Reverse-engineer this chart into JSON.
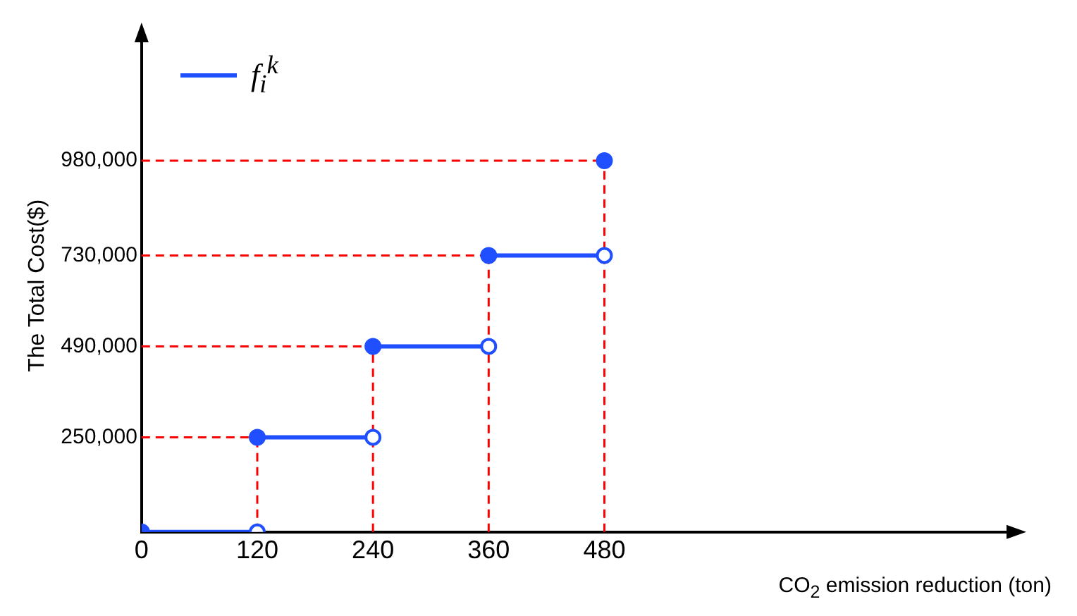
{
  "chart_data": {
    "type": "line",
    "xlabel": "CO$_{2}$ emission reduction (ton)",
    "ylabel": "The Total Cost($)",
    "series": [
      {
        "name": "f$_{i}$$^{k}$",
        "color": "#1f4fff",
        "x": [
          0,
          120
        ],
        "values": [
          0,
          0
        ]
      },
      {
        "color": "#1f4fff",
        "x": [
          120,
          240
        ],
        "values": [
          250000,
          250000
        ]
      },
      {
        "color": "#1f4fff",
        "x": [
          240,
          360
        ],
        "values": [
          490000,
          490000
        ]
      },
      {
        "color": "#1f4fff",
        "x": [
          360,
          480
        ],
        "values": [
          730000,
          730000
        ]
      },
      {
        "color": "#1f4fff",
        "x": [
          480
        ],
        "values": [
          980000
        ]
      }
    ],
    "xlim": [
      0,
      900
    ],
    "xticks": [
      0,
      120,
      240,
      360,
      480
    ],
    "ylim": [
      0,
      1300000
    ],
    "yticks": [
      {
        "value": 250000,
        "label": "250,000"
      },
      {
        "value": 490000,
        "label": "490,000"
      },
      {
        "value": 730000,
        "label": "730,000"
      },
      {
        "value": 980000,
        "label": "980,000"
      }
    ],
    "ref_lines": [
      {
        "axis": "x",
        "value": 120,
        "color": "#ff0000",
        "line_style": "dashed"
      },
      {
        "axis": "x",
        "value": 240,
        "color": "#ff0000",
        "line_style": "dashed"
      },
      {
        "axis": "x",
        "value": 360,
        "color": "#ff0000",
        "line_style": "dashed"
      },
      {
        "axis": "x",
        "value": 480,
        "color": "#ff0000",
        "line_style": "dashed"
      },
      {
        "axis": "y",
        "value": 250000,
        "color": "#ff0000",
        "line_style": "dashed"
      },
      {
        "axis": "y",
        "value": 490000,
        "color": "#ff0000",
        "line_style": "dashed"
      },
      {
        "axis": "y",
        "value": 730000,
        "color": "#ff0000",
        "line_style": "dashed"
      },
      {
        "axis": "y",
        "value": 980000,
        "color": "#ff0000",
        "line_style": "dashed"
      }
    ],
    "grid": false,
    "legend": "top left",
    "marker": "circle",
    "line_style": "solid"
  }
}
